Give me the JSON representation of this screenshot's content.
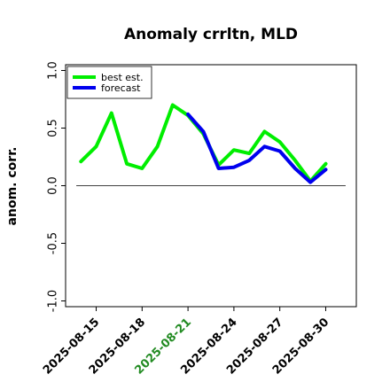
{
  "chart_data": {
    "type": "line",
    "title": "Anomaly crrltn, MLD",
    "ylabel": "anom. corr.",
    "xlabel": "",
    "ylim": [
      -1.05,
      1.05
    ],
    "yticks": [
      "-1.0",
      "-0.5",
      "0.0",
      "0.5",
      "1.0"
    ],
    "ytick_values": [
      -1.0,
      -0.5,
      0.0,
      0.5,
      1.0
    ],
    "xticks": [
      "2025-08-15",
      "2025-08-18",
      "2025-08-21",
      "2025-08-24",
      "2025-08-27",
      "2025-08-30"
    ],
    "xtick_values": [
      1,
      4,
      7,
      10,
      13,
      16
    ],
    "highlighted_xtick": "2025-08-21",
    "highlight_color": "#228B22",
    "xlim": [
      -1,
      18
    ],
    "zero_line": true,
    "legend_position": "top-left",
    "series": [
      {
        "name": "best est.",
        "color": "#00ee00",
        "x": [
          0,
          1,
          2,
          3,
          4,
          5,
          6,
          7,
          8,
          9,
          10,
          11,
          12,
          13,
          14,
          15,
          16
        ],
        "values": [
          0.21,
          0.34,
          0.63,
          0.19,
          0.15,
          0.34,
          0.7,
          0.61,
          0.45,
          0.18,
          0.31,
          0.28,
          0.47,
          0.38,
          0.22,
          0.04,
          0.19
        ]
      },
      {
        "name": "forecast",
        "color": "#0000ee",
        "x": [
          7,
          8,
          9,
          10,
          11,
          12,
          13,
          14,
          15,
          16
        ],
        "values": [
          0.62,
          0.47,
          0.15,
          0.16,
          0.22,
          0.34,
          0.3,
          0.15,
          0.03,
          0.14
        ]
      }
    ]
  }
}
